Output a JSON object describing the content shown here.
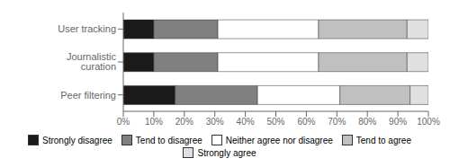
{
  "chart_data": {
    "type": "bar",
    "orientation": "horizontal",
    "stacked": true,
    "categories": [
      "Peer filtering",
      "Journalistic curation",
      "User tracking"
    ],
    "series": [
      {
        "name": "Strongly disagree",
        "color": "#1a1a1a",
        "values": [
          17,
          10,
          10
        ]
      },
      {
        "name": "Tend to disagree",
        "color": "#808080",
        "values": [
          27,
          21,
          21
        ]
      },
      {
        "name": "Neither agree nor disagree",
        "color": "#ffffff",
        "values": [
          27,
          33,
          33
        ]
      },
      {
        "name": "Tend to agree",
        "color": "#c0c0c0",
        "values": [
          23,
          29,
          29
        ]
      },
      {
        "name": "Strongly agree",
        "color": "#e0e0e0",
        "values": [
          6,
          7,
          7
        ]
      }
    ],
    "xlim": [
      0,
      100
    ],
    "xticks": [
      {
        "value": 0,
        "label": "0%"
      },
      {
        "value": 10,
        "label": "10%"
      },
      {
        "value": 20,
        "label": "20%"
      },
      {
        "value": 30,
        "label": "30%"
      },
      {
        "value": 40,
        "label": "40%"
      },
      {
        "value": 50,
        "label": "50%"
      },
      {
        "value": 60,
        "label": "60%"
      },
      {
        "value": 70,
        "label": "70%"
      },
      {
        "value": 80,
        "label": "80%"
      },
      {
        "value": 90,
        "label": "90%"
      },
      {
        "value": 100,
        "label": "100%"
      }
    ],
    "grid": false,
    "legend": "bottom"
  }
}
